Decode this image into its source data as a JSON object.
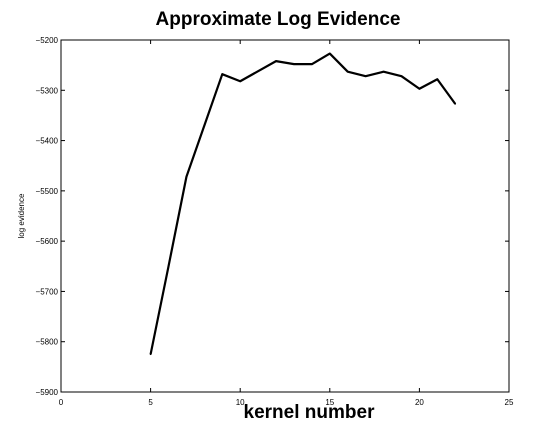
{
  "chart_data": {
    "type": "line",
    "title": "Approximate Log Evidence",
    "xlabel": "kernel number",
    "ylabel": "log evidence",
    "xlim": [
      0,
      25
    ],
    "ylim": [
      -5900,
      -5200
    ],
    "xticks": [
      0,
      5,
      10,
      15,
      20,
      25
    ],
    "yticks": [
      -5900,
      -5800,
      -5700,
      -5600,
      -5500,
      -5400,
      -5300,
      -5200
    ],
    "xtick_labels": [
      "0",
      "5",
      "10",
      "15",
      "20",
      "25"
    ],
    "ytick_labels": [
      "−5900",
      "−5800",
      "−5700",
      "−5600",
      "−5500",
      "−5400",
      "−5300",
      "−5200"
    ],
    "grid": false,
    "legend": "none",
    "line_color": "#000000",
    "series": [
      {
        "x": [
          5,
          6,
          7,
          8,
          9,
          10,
          11,
          12,
          13,
          14,
          15,
          16,
          17,
          18,
          19,
          20,
          21,
          22
        ],
        "values": [
          -5825,
          -5650,
          -5472,
          -5370,
          -5268,
          -5282,
          -5262,
          -5242,
          -5248,
          -5248,
          -5227,
          -5263,
          -5272,
          -5263,
          -5272,
          -5297,
          -5278,
          -5327
        ]
      }
    ]
  }
}
